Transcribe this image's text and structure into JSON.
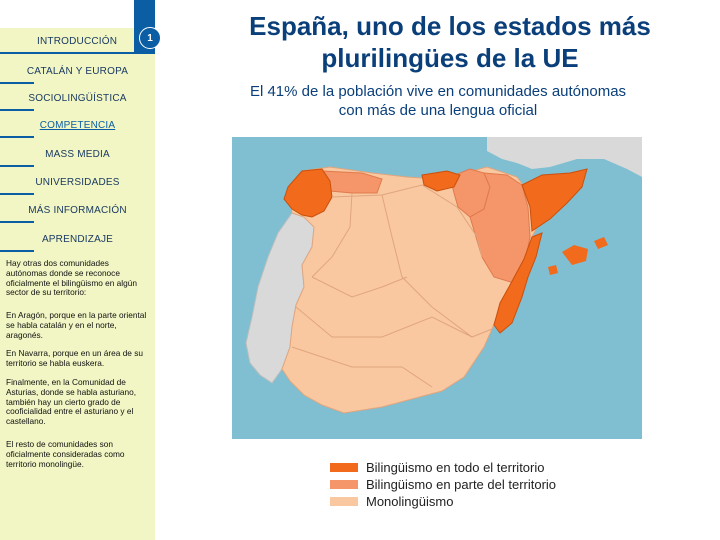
{
  "sidebar": {
    "slide_number": "1",
    "items": [
      {
        "label": "INTRODUCCIÓN"
      },
      {
        "label": "CATALÁN Y EUROPA"
      },
      {
        "label": "SOCIOLINGÜÍSTICA"
      },
      {
        "label": "COMPETENCIA"
      },
      {
        "label": "MASS MEDIA"
      },
      {
        "label": "UNIVERSIDADES"
      },
      {
        "label": "MÁS INFORMACIÓN"
      },
      {
        "label": "APRENDIZAJE"
      }
    ],
    "paragraphs": [
      "Hay otras dos comunidades autónomas donde se reconoce oficialmente el bilingüismo en algún sector de su territorio:",
      "En Aragón, porque en la parte oriental se habla catalán y en el norte, aragonés.",
      "En Navarra, porque en un área de su territorio se habla euskera.",
      "Finalmente, en la Comunidad de Asturias, donde se habla asturiano, también hay un cierto grado de cooficialidad entre el asturiano y el castellano.",
      "El resto de comunidades son oficialmente consideradas como territorio monolingüe."
    ]
  },
  "main": {
    "title": "España, uno de los estados más plurilingües de la UE",
    "subtitle": "El 41% de la población vive en comunidades autónomas con más de una lengua oficial"
  },
  "legend": [
    {
      "label": "Bilingüismo en todo el territorio",
      "color": "#f26a1b"
    },
    {
      "label": "Bilingüismo en parte del territorio",
      "color": "#f4956a"
    },
    {
      "label": "Monolingüismo",
      "color": "#f9c8a0"
    }
  ],
  "colors": {
    "sea": "#7fbfd1",
    "portugal": "#d9d9d9",
    "france": "#d9d9d9",
    "monolingual": "#f9c8a0",
    "partial": "#f4956a",
    "full": "#f26a1b",
    "accent": "#0b5ea4"
  }
}
